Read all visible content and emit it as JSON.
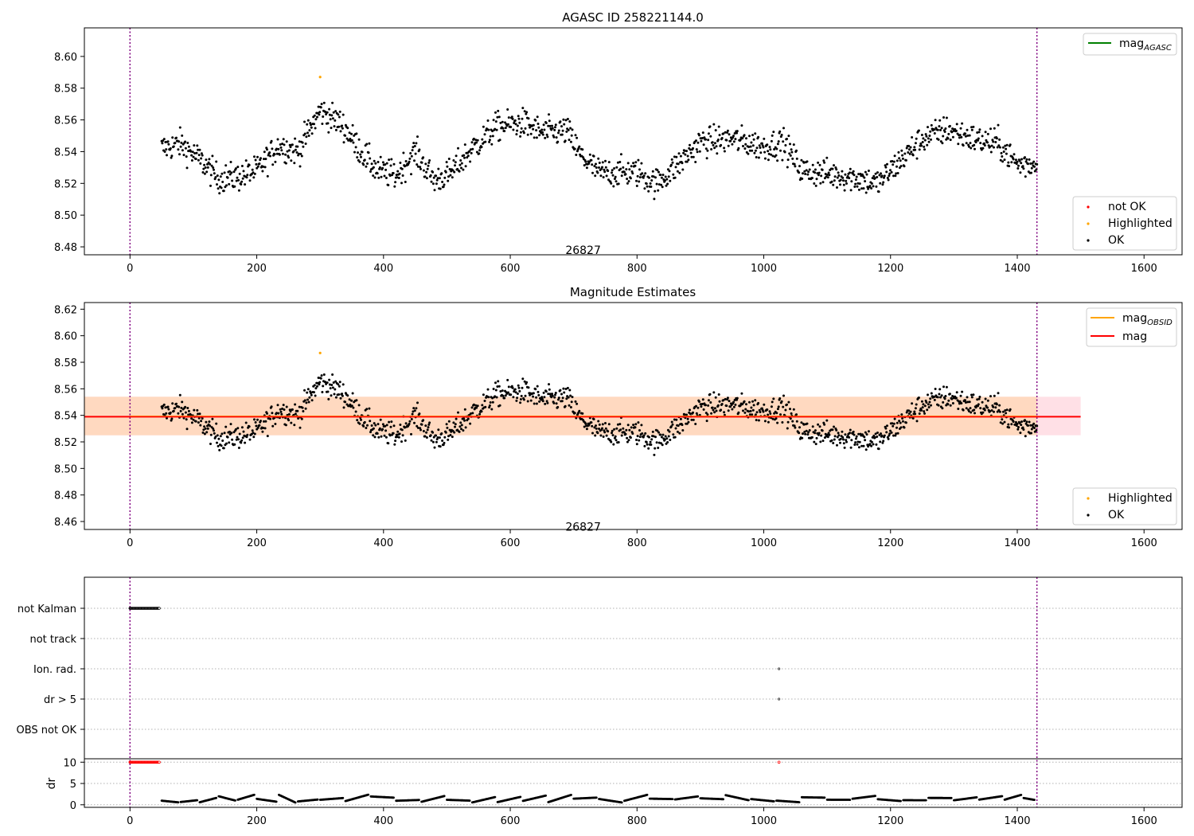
{
  "chart_data": [
    {
      "type": "scatter",
      "title": "AGASC ID 258221144.0",
      "x_range": [
        -72,
        1660
      ],
      "y_range": [
        8.475,
        8.618
      ],
      "x_ticks": [
        0,
        200,
        400,
        600,
        800,
        1000,
        1200,
        1400,
        1600
      ],
      "y_ticks": [
        8.48,
        8.5,
        8.52,
        8.54,
        8.56,
        8.58,
        8.6
      ],
      "vlines": [
        0,
        1431
      ],
      "annotation": {
        "text": "26827",
        "x": 715,
        "y": 8.4775
      },
      "legend_upper": [
        {
          "label": "mag",
          "subscript": "AGASC",
          "color": "#008000"
        }
      ],
      "legend_lower": [
        {
          "label": "not OK",
          "color": "#ff0000"
        },
        {
          "label": "Highlighted",
          "color": "#ffa500"
        },
        {
          "label": "OK",
          "color": "#000000"
        }
      ],
      "series": [
        {
          "name": "OK",
          "color": "#000000",
          "x_start": 50,
          "x_end": 1431,
          "count": 1380,
          "shape_x": [
            50,
            80,
            110,
            140,
            170,
            200,
            235,
            265,
            300,
            335,
            365,
            390,
            420,
            450,
            480,
            505,
            540,
            580,
            620,
            650,
            690,
            710,
            740,
            770,
            800,
            830,
            860,
            900,
            950,
            1000,
            1030,
            1060,
            1100,
            1140,
            1180,
            1210,
            1250,
            1290,
            1330,
            1370,
            1400,
            1431
          ],
          "shape_y": [
            8.542,
            8.545,
            8.535,
            8.523,
            8.524,
            8.528,
            8.544,
            8.54,
            8.566,
            8.557,
            8.54,
            8.528,
            8.525,
            8.54,
            8.522,
            8.526,
            8.542,
            8.556,
            8.558,
            8.552,
            8.553,
            8.538,
            8.527,
            8.527,
            8.527,
            8.52,
            8.53,
            8.546,
            8.548,
            8.543,
            8.546,
            8.528,
            8.526,
            8.524,
            8.52,
            8.532,
            8.548,
            8.554,
            8.548,
            8.545,
            8.532,
            8.532
          ],
          "noise": 0.0075
        },
        {
          "name": "Highlighted",
          "color": "#ffa500",
          "points": [
            [
              300,
              8.587
            ]
          ]
        }
      ]
    },
    {
      "type": "scatter",
      "title": "Magnitude Estimates",
      "x_range": [
        -72,
        1660
      ],
      "y_range": [
        8.454,
        8.625
      ],
      "x_ticks": [
        0,
        200,
        400,
        600,
        800,
        1000,
        1200,
        1400,
        1600
      ],
      "y_ticks": [
        8.46,
        8.48,
        8.5,
        8.52,
        8.54,
        8.56,
        8.58,
        8.6,
        8.62
      ],
      "vlines": [
        0,
        1431
      ],
      "annotation": {
        "text": "26827",
        "x": 715,
        "y": 8.4555
      },
      "mag_line": {
        "value": 8.539,
        "x0": -72,
        "x1": 1500,
        "color": "#ff0000"
      },
      "band_obsid": {
        "y0": 8.525,
        "y1": 8.554,
        "x0": -72,
        "x1": 1431,
        "color": "#ffd9c0"
      },
      "band_mag": {
        "y0": 8.525,
        "y1": 8.554,
        "x0": -72,
        "x1": 1500,
        "color": "#ffe0e6"
      },
      "legend_upper": [
        {
          "label": "mag",
          "subscript": "OBSID",
          "color": "#ffa500"
        },
        {
          "label": "mag",
          "subscript": "",
          "color": "#ff0000"
        }
      ],
      "legend_lower": [
        {
          "label": "Highlighted",
          "color": "#ffa500"
        },
        {
          "label": "OK",
          "color": "#000000"
        }
      ]
    },
    {
      "type": "scatter",
      "x_range": [
        -72,
        1660
      ],
      "x_ticks": [
        0,
        200,
        400,
        600,
        800,
        1000,
        1200,
        1400,
        1600
      ],
      "vlines": [
        0,
        1431
      ],
      "flag_categories": [
        "not Kalman",
        "not track",
        "Ion. rad.",
        "dr > 5",
        "OBS not OK"
      ],
      "flag_points": [
        {
          "category": "not Kalman",
          "x_start": 0,
          "x_end": 46,
          "count": 47
        },
        {
          "category": "Ion. rad.",
          "x": 1024
        },
        {
          "category": "dr > 5",
          "x": 1024
        }
      ],
      "dr_axis": {
        "ylabel": "dr",
        "y_range": [
          -0.6,
          10.8
        ],
        "y_ticks": [
          0,
          5,
          10
        ]
      },
      "dr_red": {
        "x_start": 0,
        "x_end": 46,
        "value": 10,
        "extra_x": [
          1024
        ],
        "color": "#ff0000"
      },
      "dr_series": {
        "x_start": 50,
        "x_end": 1431,
        "color": "#000000",
        "segment_starts": [
          50,
          80,
          110,
          140,
          170,
          200,
          235,
          265,
          300,
          340,
          380,
          420,
          460,
          500,
          540,
          580,
          620,
          660,
          700,
          740,
          780,
          820,
          860,
          900,
          940,
          980,
          1020,
          1060,
          1100,
          1140,
          1180,
          1220,
          1260,
          1300,
          1340,
          1380,
          1410
        ],
        "typical_range": [
          0.3,
          2.6
        ]
      }
    }
  ]
}
